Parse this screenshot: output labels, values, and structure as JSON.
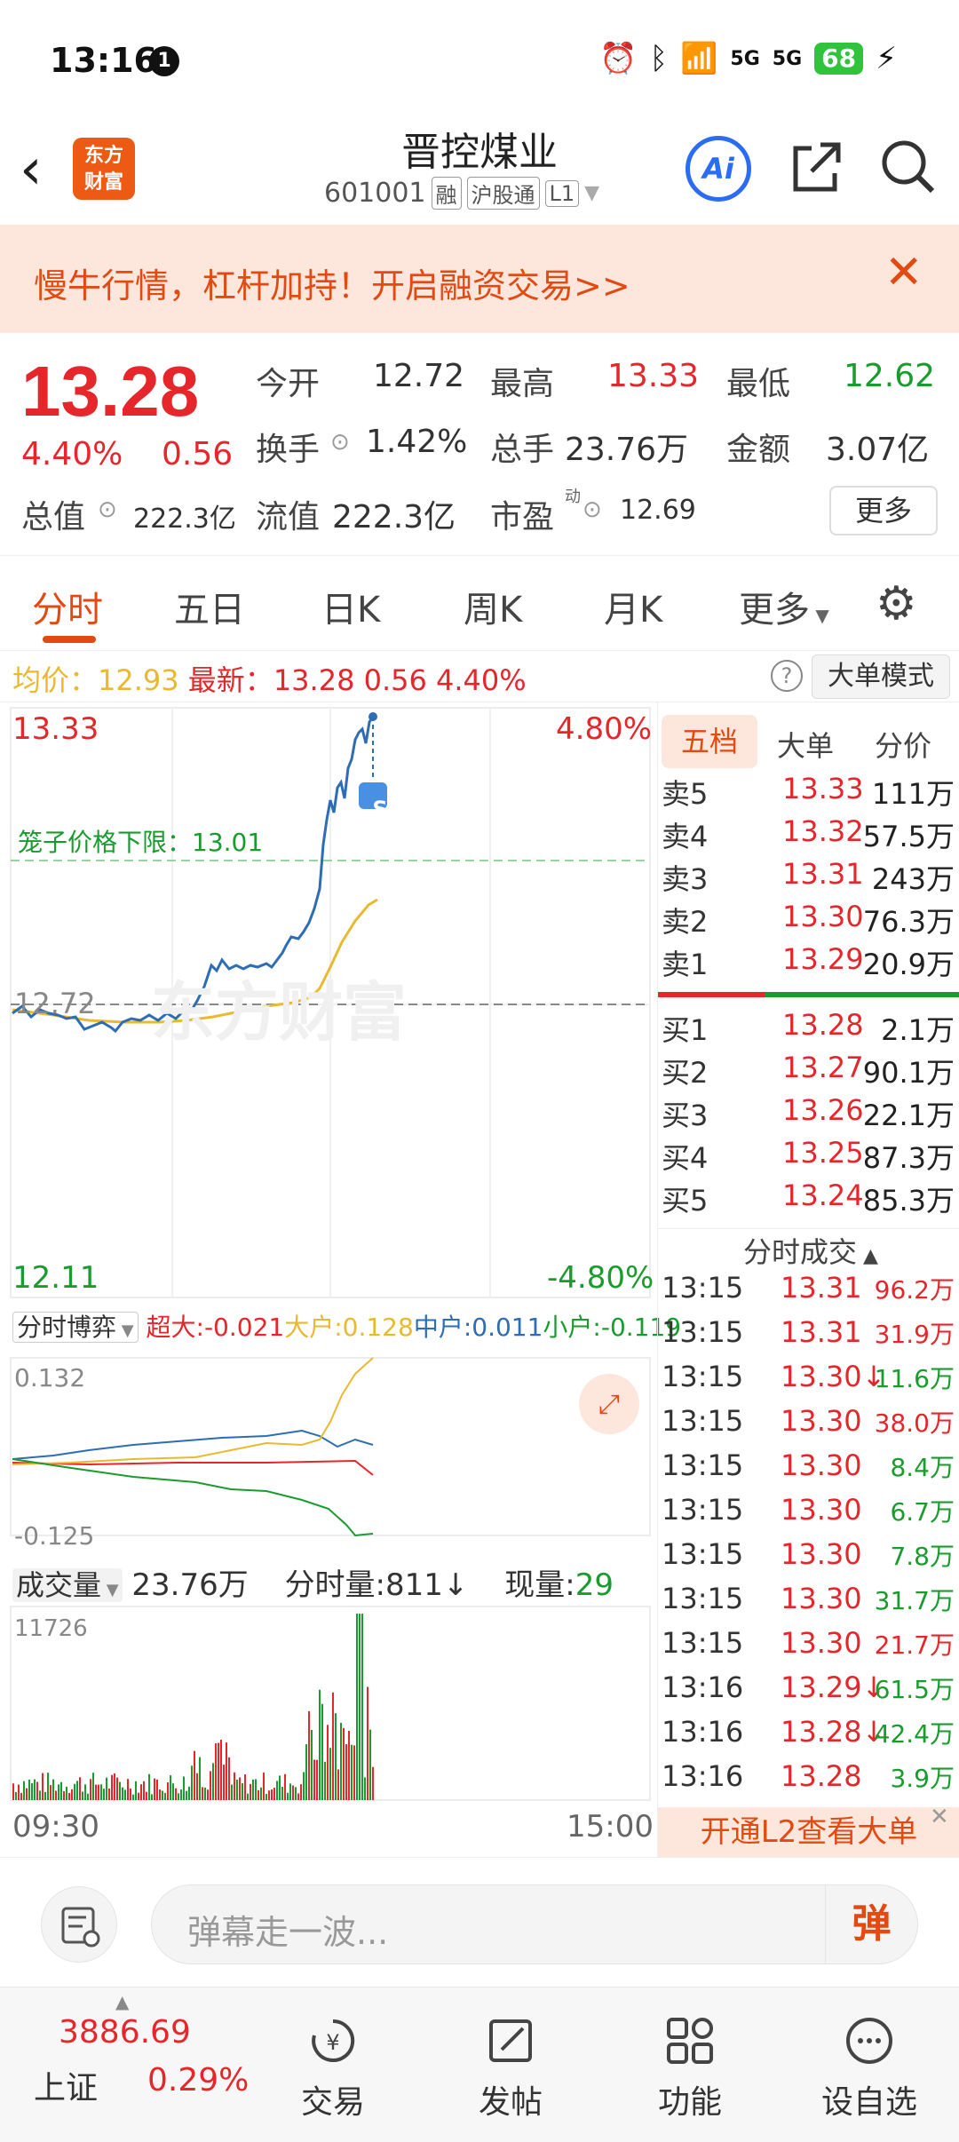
{
  "status_bar": {
    "time": "13:16",
    "notif_count": "1",
    "battery": "68",
    "net1": "5G",
    "net2": "5G"
  },
  "header": {
    "title": "晋控煤业",
    "code": "601001",
    "tags": [
      "融",
      "沪股通",
      "L1"
    ],
    "ai_label": "Ai",
    "logo_text_1": "东方",
    "logo_text_2": "财富"
  },
  "banner": {
    "text": "慢牛行情，杠杆加持！开启融资交易>>"
  },
  "quote": {
    "price": "13.28",
    "pct": "4.40%",
    "change": "0.56",
    "open_label": "今开",
    "open": "12.72",
    "high_label": "最高",
    "high": "13.33",
    "low_label": "最低",
    "low": "12.62",
    "turnover_label": "换手",
    "turnover": "1.42%",
    "volume_label": "总手",
    "volume": "23.76万",
    "amount_label": "金额",
    "amount": "3.07亿",
    "mktcap_label": "总值",
    "mktcap": "222.3亿",
    "float_label": "流值",
    "float": "222.3亿",
    "pe_label": "市盈",
    "pe_sup": "动",
    "pe": "12.69",
    "more": "更多"
  },
  "tabs": [
    "分时",
    "五日",
    "日K",
    "周K",
    "月K",
    "更多"
  ],
  "avg_row": {
    "avg_label": "均价：",
    "avg": "12.93",
    "latest_label": "最新：",
    "latest": "13.28",
    "chg": "0.56",
    "pct": "4.40%",
    "mode_btn": "大单模式"
  },
  "chart_axis": {
    "top_price": "13.33",
    "top_pct": "4.80%",
    "bottom_price": "12.11",
    "bottom_pct": "-4.80%",
    "prev_close": "12.72",
    "cage_label": "笼子价格下限：13.01",
    "signal": "S",
    "watermark": "东方财富"
  },
  "flow": {
    "selector": "分时博弈",
    "super_label": "超大:",
    "super": "-0.021",
    "big_label": "大户:",
    "big": "0.128",
    "mid_label": "中户:",
    "mid": "0.011",
    "small_label": "小户:",
    "small": "-0.119",
    "top": "0.132",
    "bottom": "-0.125"
  },
  "volume": {
    "selector": "成交量",
    "total": "23.76万",
    "minute_label": "分时量:",
    "minute": "811",
    "now_label": "现量:",
    "now": "29",
    "max": "11726",
    "start_time": "09:30",
    "end_time": "15:00"
  },
  "orderbook": {
    "tabs": [
      "五档",
      "大单",
      "分价"
    ],
    "asks": [
      {
        "label": "卖5",
        "price": "13.33",
        "vol": "111万"
      },
      {
        "label": "卖4",
        "price": "13.32",
        "vol": "57.5万"
      },
      {
        "label": "卖3",
        "price": "13.31",
        "vol": "243万"
      },
      {
        "label": "卖2",
        "price": "13.30",
        "vol": "76.3万"
      },
      {
        "label": "卖1",
        "price": "13.29",
        "vol": "20.9万"
      }
    ],
    "bids": [
      {
        "label": "买1",
        "price": "13.28",
        "vol": "2.1万"
      },
      {
        "label": "买2",
        "price": "13.27",
        "vol": "90.1万"
      },
      {
        "label": "买3",
        "price": "13.26",
        "vol": "22.1万"
      },
      {
        "label": "买4",
        "price": "13.25",
        "vol": "87.3万"
      },
      {
        "label": "买5",
        "price": "13.24",
        "vol": "85.3万"
      }
    ]
  },
  "ticks": {
    "title": "分时成交",
    "rows": [
      {
        "time": "13:15",
        "price": "13.31",
        "vol": "96.2万",
        "dir": "red"
      },
      {
        "time": "13:15",
        "price": "13.31",
        "vol": "31.9万",
        "dir": "red"
      },
      {
        "time": "13:15",
        "price": "13.30↓",
        "vol": "11.6万",
        "dir": "green"
      },
      {
        "time": "13:15",
        "price": "13.30",
        "vol": "38.0万",
        "dir": "red"
      },
      {
        "time": "13:15",
        "price": "13.30",
        "vol": "8.4万",
        "dir": "green"
      },
      {
        "time": "13:15",
        "price": "13.30",
        "vol": "6.7万",
        "dir": "green"
      },
      {
        "time": "13:15",
        "price": "13.30",
        "vol": "7.8万",
        "dir": "green"
      },
      {
        "time": "13:15",
        "price": "13.30",
        "vol": "31.7万",
        "dir": "green"
      },
      {
        "time": "13:15",
        "price": "13.30",
        "vol": "21.7万",
        "dir": "red"
      },
      {
        "time": "13:16",
        "price": "13.29↓",
        "vol": "61.5万",
        "dir": "green"
      },
      {
        "time": "13:16",
        "price": "13.28↓",
        "vol": "42.4万",
        "dir": "green"
      },
      {
        "time": "13:16",
        "price": "13.28",
        "vol": "3.9万",
        "dir": "green"
      }
    ],
    "l2": "开通L2查看大单"
  },
  "comment": {
    "placeholder": "弹幕走一波...",
    "dan": "弹"
  },
  "bottom_nav": {
    "index_value": "3886.69",
    "index_name": "上证",
    "index_pct": "0.29%",
    "items": [
      "交易",
      "发帖",
      "功能",
      "设自选"
    ]
  },
  "colors": {
    "up": "#e5262b",
    "down": "#1a9b2e",
    "accent": "#e24a12",
    "price_line": "#2e6db4",
    "avg_line": "#e8b931"
  }
}
